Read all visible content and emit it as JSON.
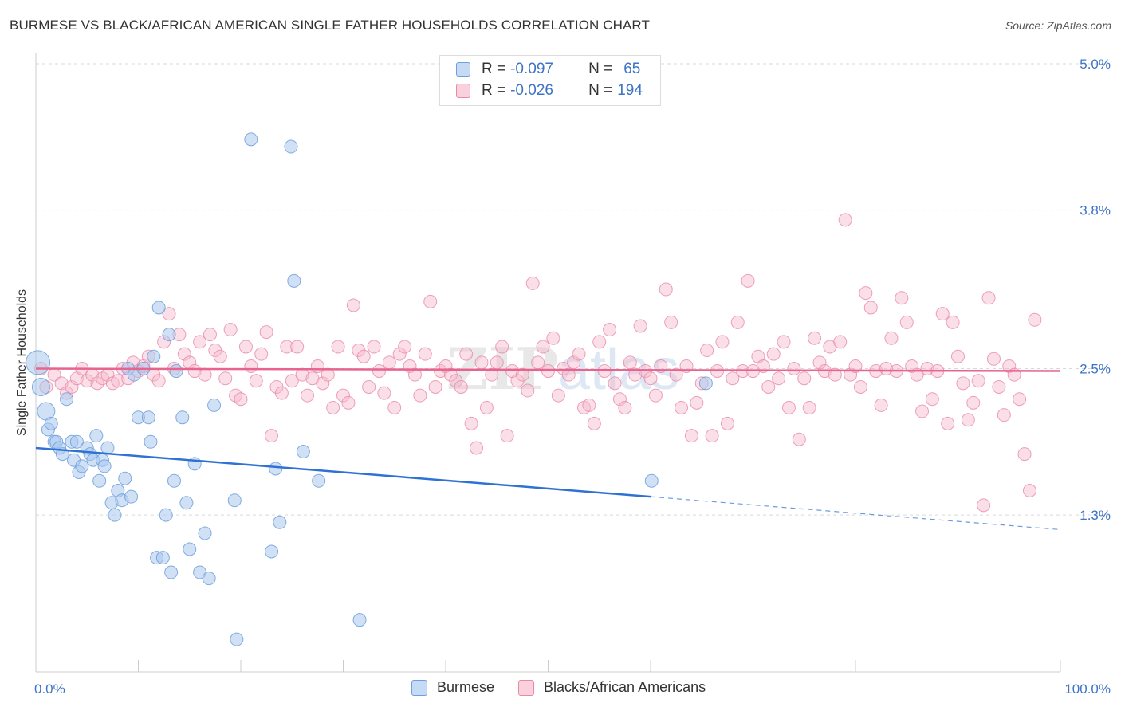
{
  "title": "BURMESE VS BLACK/AFRICAN AMERICAN SINGLE FATHER HOUSEHOLDS CORRELATION CHART",
  "source": "Source: ZipAtlas.com",
  "watermark": "ZIPatlas",
  "legend": {
    "rows": [
      {
        "r_label": "R =",
        "r_value": "-0.097",
        "n_label": "N =",
        "n_value": "65"
      },
      {
        "r_label": "R =",
        "r_value": "-0.026",
        "n_label": "N =",
        "n_value": "194"
      }
    ]
  },
  "colors": {
    "blue_fill": "#a9c8ef",
    "blue_stroke": "#6f9fdc",
    "blue_line": "#2f72d3",
    "pink_fill": "#f6b8cb",
    "pink_stroke": "#e88aa7",
    "pink_line": "#e8648f",
    "axis_text": "#3d74c5",
    "grid": "#d9d9d9"
  },
  "chart_data": {
    "type": "scatter",
    "title": "BURMESE VS BLACK/AFRICAN AMERICAN SINGLE FATHER HOUSEHOLDS CORRELATION CHART",
    "xlabel": "",
    "ylabel": "Single Father Households",
    "xlim": [
      0,
      100
    ],
    "ylim": [
      0,
      5.0
    ],
    "x_tick_labels": [
      "0.0%",
      "100.0%"
    ],
    "y_ticks": [
      1.3,
      2.5,
      3.8,
      5.0
    ],
    "y_tick_labels": [
      "1.3%",
      "2.5%",
      "3.8%",
      "5.0%"
    ],
    "grid": true,
    "legend_position": "top-center",
    "series": [
      {
        "name": "Burmese",
        "color": "blue",
        "trend": {
          "x": [
            0,
            60
          ],
          "y": [
            1.85,
            1.45
          ],
          "dashed_to": [
            100,
            1.18
          ]
        },
        "points": [
          [
            0.2,
            2.55
          ],
          [
            0.5,
            2.35
          ],
          [
            1,
            2.15
          ],
          [
            1.2,
            2.0
          ],
          [
            1.5,
            2.05
          ],
          [
            1.8,
            1.9
          ],
          [
            2,
            1.9
          ],
          [
            2.3,
            1.85
          ],
          [
            2.6,
            1.8
          ],
          [
            3,
            2.25
          ],
          [
            3.5,
            1.9
          ],
          [
            3.7,
            1.75
          ],
          [
            4,
            1.9
          ],
          [
            4.2,
            1.65
          ],
          [
            4.5,
            1.7
          ],
          [
            5,
            1.85
          ],
          [
            5.3,
            1.8
          ],
          [
            5.6,
            1.75
          ],
          [
            5.9,
            1.95
          ],
          [
            6.2,
            1.58
          ],
          [
            6.5,
            1.75
          ],
          [
            6.7,
            1.7
          ],
          [
            7,
            1.85
          ],
          [
            7.4,
            1.4
          ],
          [
            7.7,
            1.3
          ],
          [
            8,
            1.5
          ],
          [
            8.4,
            1.42
          ],
          [
            8.7,
            1.6
          ],
          [
            9,
            2.5
          ],
          [
            9.3,
            1.45
          ],
          [
            9.6,
            2.45
          ],
          [
            10,
            2.1
          ],
          [
            10.5,
            2.5
          ],
          [
            11,
            2.1
          ],
          [
            11.2,
            1.9
          ],
          [
            11.5,
            2.6
          ],
          [
            11.8,
            0.95
          ],
          [
            12,
            3.0
          ],
          [
            12.4,
            0.95
          ],
          [
            12.7,
            1.3
          ],
          [
            13,
            2.78
          ],
          [
            13.2,
            0.83
          ],
          [
            13.5,
            1.58
          ],
          [
            13.7,
            2.48
          ],
          [
            14.3,
            2.1
          ],
          [
            14.7,
            1.4
          ],
          [
            15,
            1.02
          ],
          [
            15.5,
            1.72
          ],
          [
            16,
            0.83
          ],
          [
            16.5,
            1.15
          ],
          [
            16.9,
            0.78
          ],
          [
            17.4,
            2.2
          ],
          [
            19.4,
            1.42
          ],
          [
            21,
            4.38
          ],
          [
            19.6,
            0.28
          ],
          [
            23,
            1.0
          ],
          [
            23.4,
            1.68
          ],
          [
            23.8,
            1.24
          ],
          [
            24.9,
            4.32
          ],
          [
            25.2,
            3.22
          ],
          [
            26.1,
            1.82
          ],
          [
            27.6,
            1.58
          ],
          [
            31.6,
            0.44
          ],
          [
            60.1,
            1.58
          ],
          [
            65.4,
            2.38
          ]
        ]
      },
      {
        "name": "Blacks/African Americans",
        "color": "pink",
        "trend": {
          "x": [
            0,
            100
          ],
          "y": [
            2.5,
            2.48
          ]
        },
        "points": [
          [
            0.5,
            2.5
          ],
          [
            1,
            2.35
          ],
          [
            1.8,
            2.45
          ],
          [
            2.5,
            2.38
          ],
          [
            3,
            2.3
          ],
          [
            3.5,
            2.35
          ],
          [
            4,
            2.42
          ],
          [
            4.5,
            2.5
          ],
          [
            5,
            2.4
          ],
          [
            5.5,
            2.45
          ],
          [
            6,
            2.38
          ],
          [
            6.5,
            2.42
          ],
          [
            7,
            2.45
          ],
          [
            7.5,
            2.38
          ],
          [
            8,
            2.4
          ],
          [
            8.5,
            2.5
          ],
          [
            9,
            2.42
          ],
          [
            9.5,
            2.55
          ],
          [
            10,
            2.48
          ],
          [
            10.5,
            2.52
          ],
          [
            11,
            2.6
          ],
          [
            11.5,
            2.45
          ],
          [
            12,
            2.4
          ],
          [
            12.5,
            2.72
          ],
          [
            13,
            2.95
          ],
          [
            13.5,
            2.5
          ],
          [
            14,
            2.78
          ],
          [
            14.5,
            2.62
          ],
          [
            15,
            2.55
          ],
          [
            15.5,
            2.48
          ],
          [
            16,
            2.72
          ],
          [
            16.5,
            2.45
          ],
          [
            17,
            2.78
          ],
          [
            17.5,
            2.65
          ],
          [
            18,
            2.6
          ],
          [
            18.5,
            2.42
          ],
          [
            19,
            2.82
          ],
          [
            19.5,
            2.28
          ],
          [
            20,
            2.25
          ],
          [
            20.5,
            2.68
          ],
          [
            21,
            2.52
          ],
          [
            21.5,
            2.4
          ],
          [
            22,
            2.62
          ],
          [
            22.5,
            2.8
          ],
          [
            23,
            1.95
          ],
          [
            23.5,
            2.35
          ],
          [
            24,
            2.3
          ],
          [
            24.5,
            2.68
          ],
          [
            25,
            2.4
          ],
          [
            25.5,
            2.68
          ],
          [
            26,
            2.45
          ],
          [
            26.5,
            2.28
          ],
          [
            27,
            2.42
          ],
          [
            27.5,
            2.52
          ],
          [
            28,
            2.38
          ],
          [
            28.5,
            2.45
          ],
          [
            29,
            2.18
          ],
          [
            29.5,
            2.68
          ],
          [
            30,
            2.28
          ],
          [
            30.5,
            2.22
          ],
          [
            31,
            3.02
          ],
          [
            31.5,
            2.65
          ],
          [
            32,
            2.6
          ],
          [
            32.5,
            2.35
          ],
          [
            33,
            2.68
          ],
          [
            33.5,
            2.48
          ],
          [
            34,
            2.3
          ],
          [
            34.5,
            2.55
          ],
          [
            35,
            2.18
          ],
          [
            35.5,
            2.62
          ],
          [
            36,
            2.68
          ],
          [
            36.5,
            2.52
          ],
          [
            37,
            2.45
          ],
          [
            37.5,
            2.28
          ],
          [
            38,
            2.62
          ],
          [
            38.5,
            3.05
          ],
          [
            39,
            2.35
          ],
          [
            39.5,
            2.48
          ],
          [
            40,
            2.52
          ],
          [
            40.5,
            2.45
          ],
          [
            41,
            2.4
          ],
          [
            41.5,
            2.35
          ],
          [
            42,
            2.62
          ],
          [
            42.5,
            2.05
          ],
          [
            43,
            1.85
          ],
          [
            43.5,
            2.55
          ],
          [
            44,
            2.18
          ],
          [
            44.5,
            2.45
          ],
          [
            45,
            2.55
          ],
          [
            45.5,
            2.68
          ],
          [
            46,
            1.95
          ],
          [
            46.5,
            2.48
          ],
          [
            47,
            2.4
          ],
          [
            47.5,
            2.45
          ],
          [
            48,
            2.32
          ],
          [
            48.5,
            3.2
          ],
          [
            49,
            2.55
          ],
          [
            49.5,
            2.68
          ],
          [
            50,
            2.48
          ],
          [
            50.5,
            2.75
          ],
          [
            51,
            2.28
          ],
          [
            51.5,
            2.5
          ],
          [
            52,
            2.45
          ],
          [
            52.5,
            2.55
          ],
          [
            53,
            2.62
          ],
          [
            53.5,
            2.18
          ],
          [
            54,
            2.2
          ],
          [
            54.5,
            2.05
          ],
          [
            55,
            2.72
          ],
          [
            55.5,
            2.48
          ],
          [
            56,
            2.82
          ],
          [
            56.5,
            2.38
          ],
          [
            57,
            2.25
          ],
          [
            57.5,
            2.18
          ],
          [
            58,
            2.55
          ],
          [
            58.5,
            2.45
          ],
          [
            59,
            2.85
          ],
          [
            59.5,
            2.48
          ],
          [
            60,
            2.42
          ],
          [
            60.5,
            2.28
          ],
          [
            61,
            2.52
          ],
          [
            61.5,
            3.15
          ],
          [
            62,
            2.88
          ],
          [
            62.5,
            2.45
          ],
          [
            63,
            2.18
          ],
          [
            63.5,
            2.52
          ],
          [
            64,
            1.95
          ],
          [
            64.5,
            2.22
          ],
          [
            65,
            2.38
          ],
          [
            65.5,
            2.65
          ],
          [
            66,
            1.95
          ],
          [
            66.5,
            2.48
          ],
          [
            67,
            2.72
          ],
          [
            67.5,
            2.05
          ],
          [
            68,
            2.42
          ],
          [
            68.5,
            2.88
          ],
          [
            69,
            2.48
          ],
          [
            69.5,
            3.22
          ],
          [
            70,
            2.48
          ],
          [
            70.5,
            2.6
          ],
          [
            71,
            2.52
          ],
          [
            71.5,
            2.35
          ],
          [
            72,
            2.62
          ],
          [
            72.5,
            2.42
          ],
          [
            73,
            2.72
          ],
          [
            73.5,
            2.18
          ],
          [
            74,
            2.5
          ],
          [
            74.5,
            1.92
          ],
          [
            75,
            2.42
          ],
          [
            75.5,
            2.18
          ],
          [
            76,
            2.75
          ],
          [
            76.5,
            2.55
          ],
          [
            77,
            2.48
          ],
          [
            77.5,
            2.68
          ],
          [
            78,
            2.45
          ],
          [
            78.5,
            2.72
          ],
          [
            79,
            3.72
          ],
          [
            79.5,
            2.45
          ],
          [
            80,
            2.52
          ],
          [
            80.5,
            2.35
          ],
          [
            81,
            3.12
          ],
          [
            81.5,
            3.0
          ],
          [
            82,
            2.48
          ],
          [
            82.5,
            2.2
          ],
          [
            83,
            2.5
          ],
          [
            83.5,
            2.75
          ],
          [
            84,
            2.48
          ],
          [
            84.5,
            3.08
          ],
          [
            85,
            2.88
          ],
          [
            85.5,
            2.52
          ],
          [
            86,
            2.45
          ],
          [
            86.5,
            2.15
          ],
          [
            87,
            2.5
          ],
          [
            87.5,
            2.25
          ],
          [
            88,
            2.48
          ],
          [
            88.5,
            2.95
          ],
          [
            89,
            2.05
          ],
          [
            89.5,
            2.88
          ],
          [
            90,
            2.6
          ],
          [
            90.5,
            2.38
          ],
          [
            91,
            2.08
          ],
          [
            91.5,
            2.22
          ],
          [
            92,
            2.4
          ],
          [
            92.5,
            1.38
          ],
          [
            93,
            3.08
          ],
          [
            93.5,
            2.58
          ],
          [
            94,
            2.35
          ],
          [
            94.5,
            2.12
          ],
          [
            95,
            2.52
          ],
          [
            95.5,
            2.45
          ],
          [
            96,
            2.25
          ],
          [
            96.5,
            1.8
          ],
          [
            97,
            1.5
          ],
          [
            97.5,
            2.9
          ]
        ]
      }
    ]
  },
  "bottom_legend": [
    "Burmese",
    "Blacks/African Americans"
  ]
}
